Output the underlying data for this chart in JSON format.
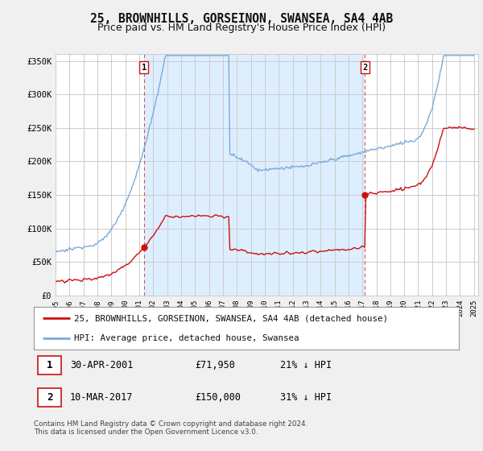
{
  "title": "25, BROWNHILLS, GORSEINON, SWANSEA, SA4 4AB",
  "subtitle": "Price paid vs. HM Land Registry's House Price Index (HPI)",
  "xlim": [
    1995.0,
    2025.3
  ],
  "ylim": [
    0,
    360000
  ],
  "yticks": [
    0,
    50000,
    100000,
    150000,
    200000,
    250000,
    300000,
    350000
  ],
  "ytick_labels": [
    "£0",
    "£50K",
    "£100K",
    "£150K",
    "£200K",
    "£250K",
    "£300K",
    "£350K"
  ],
  "xticks": [
    1995,
    1996,
    1997,
    1998,
    1999,
    2000,
    2001,
    2002,
    2003,
    2004,
    2005,
    2006,
    2007,
    2008,
    2009,
    2010,
    2011,
    2012,
    2013,
    2014,
    2015,
    2016,
    2017,
    2018,
    2019,
    2020,
    2021,
    2022,
    2023,
    2024,
    2025
  ],
  "hpi_color": "#7aaadd",
  "price_color": "#cc1111",
  "shade_color": "#ddeeff",
  "marker1_date": 2001.33,
  "marker1_price": 71950,
  "marker2_date": 2017.18,
  "marker2_price": 150000,
  "legend_line1": "25, BROWNHILLS, GORSEINON, SWANSEA, SA4 4AB (detached house)",
  "legend_line2": "HPI: Average price, detached house, Swansea",
  "table_row1_num": "1",
  "table_row1_date": "30-APR-2001",
  "table_row1_price": "£71,950",
  "table_row1_hpi": "21% ↓ HPI",
  "table_row2_num": "2",
  "table_row2_date": "10-MAR-2017",
  "table_row2_price": "£150,000",
  "table_row2_hpi": "31% ↓ HPI",
  "footer": "Contains HM Land Registry data © Crown copyright and database right 2024.\nThis data is licensed under the Open Government Licence v3.0.",
  "bg_color": "#f0f0f0",
  "plot_bg_color": "#ffffff",
  "grid_color": "#cccccc",
  "title_fontsize": 10.5,
  "subtitle_fontsize": 9
}
